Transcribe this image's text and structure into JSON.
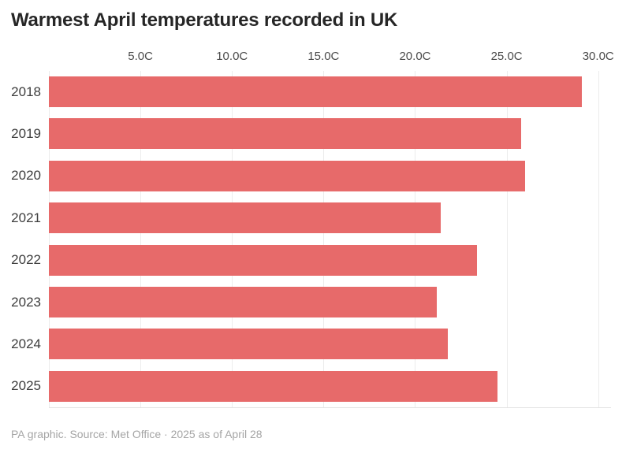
{
  "title": "Warmest April temperatures recorded in UK",
  "footer": "PA graphic. Source: Met Office · 2025 as of April 28",
  "colors": {
    "bar": "#e76a6a",
    "grid": "#ececec",
    "axis_line": "#e3e3e3",
    "title_text": "#262626",
    "tick_text": "#4b4b4b",
    "year_text": "#3d3d3d",
    "footer_text": "#a5a5a5",
    "background": "#ffffff"
  },
  "chart_data": {
    "type": "bar",
    "orientation": "horizontal",
    "title": "Warmest April temperatures recorded in UK",
    "xlabel": "",
    "ylabel": "",
    "categories": [
      "2018",
      "2019",
      "2020",
      "2021",
      "2022",
      "2023",
      "2024",
      "2025"
    ],
    "values": [
      29.1,
      25.8,
      26.0,
      21.4,
      23.4,
      21.2,
      21.8,
      24.5
    ],
    "unit": "C",
    "x_ticks": [
      0,
      5,
      10,
      15,
      20,
      25,
      30
    ],
    "x_tick_labels": [
      "",
      "5.0C",
      "10.0C",
      "15.0C",
      "20.0C",
      "25.0C",
      "30.0C"
    ],
    "xlim": [
      0,
      30.7
    ],
    "grid": true,
    "legend": false,
    "tick_position": "top"
  }
}
